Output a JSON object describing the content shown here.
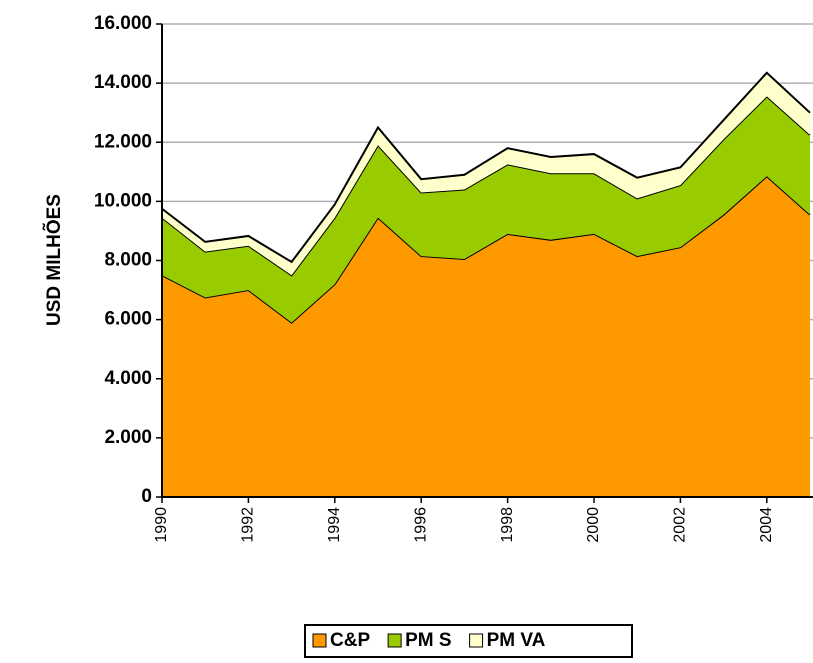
{
  "chart_data": {
    "type": "stacked_area",
    "y_label": "USD MILHÕES",
    "x": [
      1990,
      1991,
      1992,
      1993,
      1994,
      1995,
      1996,
      1997,
      1998,
      1999,
      2000,
      2001,
      2002,
      2003,
      2004,
      2005
    ],
    "xlim": [
      1990,
      2005
    ],
    "xticks": [
      1990,
      1992,
      1994,
      1996,
      1998,
      2000,
      2002,
      2004
    ],
    "ylim": [
      0,
      16000
    ],
    "yticks": [
      {
        "value": 0,
        "label": "0"
      },
      {
        "value": 2000,
        "label": "2.000"
      },
      {
        "value": 4000,
        "label": "4.000"
      },
      {
        "value": 6000,
        "label": "6.000"
      },
      {
        "value": 8000,
        "label": "8.000"
      },
      {
        "value": 10000,
        "label": "10.000"
      },
      {
        "value": 12000,
        "label": "12.000"
      },
      {
        "value": 14000,
        "label": "14.000"
      },
      {
        "value": 16000,
        "label": "16.000"
      }
    ],
    "grid": true,
    "legend": "bottom",
    "series": [
      {
        "name": "C&P",
        "color": "#ff9900",
        "values": [
          7500,
          6750,
          7000,
          5900,
          7200,
          9450,
          8150,
          8050,
          8900,
          8700,
          8900,
          8150,
          8450,
          9550,
          10850,
          9550
        ]
      },
      {
        "name": "PM S",
        "color": "#99cc00",
        "values": [
          1950,
          1550,
          1500,
          1600,
          2250,
          2450,
          2150,
          2350,
          2350,
          2250,
          2050,
          1950,
          2100,
          2550,
          2700,
          2700
        ]
      },
      {
        "name": "PM VA",
        "color": "#ffffcc",
        "values": [
          300,
          330,
          330,
          450,
          450,
          600,
          450,
          500,
          550,
          550,
          650,
          700,
          600,
          650,
          800,
          750
        ]
      }
    ]
  }
}
